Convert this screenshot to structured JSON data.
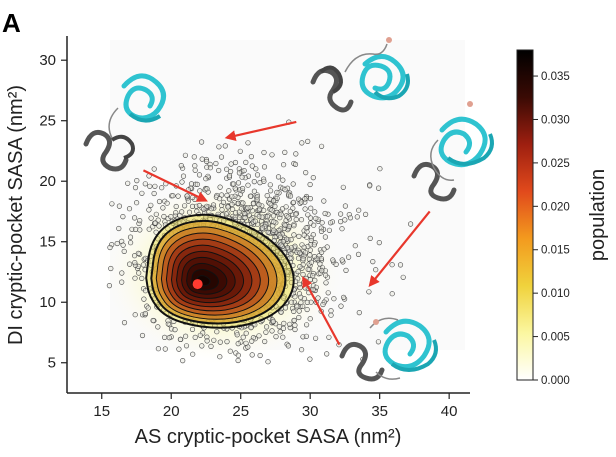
{
  "panel_label": "A",
  "colors": {
    "point_edge": "#444444",
    "arrow": "#e8372c",
    "contour": "#111111",
    "protein_cyan": "#2fc3d0",
    "protein_gray": "#555555",
    "highlight_point": "#ff3b30"
  },
  "chart_data": {
    "type": "scatter",
    "title": "",
    "xlabel": "AS cryptic-pocket SASA (nm²)",
    "ylabel": "DI cryptic-pocket SASA (nm²)",
    "xlim": [
      12.5,
      41.5
    ],
    "ylim": [
      2.5,
      32
    ],
    "x_ticks": [
      15,
      20,
      25,
      30,
      35,
      40
    ],
    "y_ticks": [
      5,
      10,
      15,
      20,
      25,
      30
    ],
    "grid": false,
    "density": {
      "peak": {
        "x": 22.2,
        "y": 11.7
      },
      "contour_levels": 11,
      "outer_contour": [
        [
          18.2,
          12
        ],
        [
          18.5,
          15
        ],
        [
          20,
          16.8
        ],
        [
          22.5,
          17.4
        ],
        [
          25,
          16.6
        ],
        [
          27.2,
          15.2
        ],
        [
          28.7,
          13.2
        ],
        [
          28.9,
          11
        ],
        [
          27.6,
          9
        ],
        [
          25,
          7.9
        ],
        [
          22,
          7.9
        ],
        [
          19.5,
          8.8
        ],
        [
          18.4,
          10.5
        ]
      ]
    },
    "highlight_point": {
      "x": 21.9,
      "y": 11.5
    },
    "colorbar": {
      "label": "population",
      "min": 0.0,
      "max": 0.038,
      "ticks": [
        "0.000",
        "0.005",
        "0.010",
        "0.015",
        "0.020",
        "0.025",
        "0.030",
        "0.035"
      ],
      "tick_values": [
        0.0,
        0.005,
        0.01,
        0.015,
        0.02,
        0.025,
        0.03,
        0.035
      ],
      "colormap": [
        "#ffffff",
        "#fbf7a0",
        "#f0d23c",
        "#f39a1e",
        "#e14a1c",
        "#9e1f10",
        "#3a0a04",
        "#000000"
      ]
    },
    "arrows": [
      {
        "from": [
          29.0,
          24.9
        ],
        "to": [
          24.0,
          23.6
        ]
      },
      {
        "from": [
          18.0,
          20.9
        ],
        "to": [
          22.5,
          18.4
        ]
      },
      {
        "from": [
          38.6,
          17.5
        ],
        "to": [
          34.3,
          11.4
        ]
      },
      {
        "from": [
          32.1,
          6.5
        ],
        "to": [
          29.5,
          12.0
        ]
      }
    ]
  }
}
